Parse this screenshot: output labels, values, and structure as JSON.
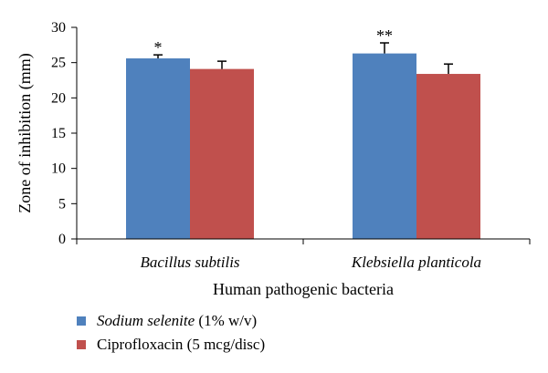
{
  "chart_data": {
    "type": "bar",
    "xlabel": "Human pathogenic bacteria",
    "ylabel": "Zone of inhibition (mm)",
    "ylim": [
      0,
      30
    ],
    "yticks": [
      "0",
      "5",
      "10",
      "15",
      "20",
      "25",
      "30"
    ],
    "categories": [
      "Bacillus subtilis",
      "Klebsiella planticola"
    ],
    "series": [
      {
        "name": "Sodium selenite (1% w/v)",
        "name_italic": "Sodium selenite",
        "name_rest": " (1% w/v)",
        "color": "#4F81BD",
        "values": [
          25.6,
          26.3
        ],
        "errors": [
          0.5,
          1.5
        ]
      },
      {
        "name": "Ciprofloxacin (5 mcg/disc)",
        "name_italic": "",
        "name_rest": "Ciprofloxacin (5 mcg/disc)",
        "color": "#C0504D",
        "values": [
          24.1,
          23.4
        ],
        "errors": [
          1.1,
          1.4
        ]
      }
    ],
    "annotations": [
      "*",
      "**"
    ],
    "grid": false,
    "legend_position": "bottom-left"
  }
}
